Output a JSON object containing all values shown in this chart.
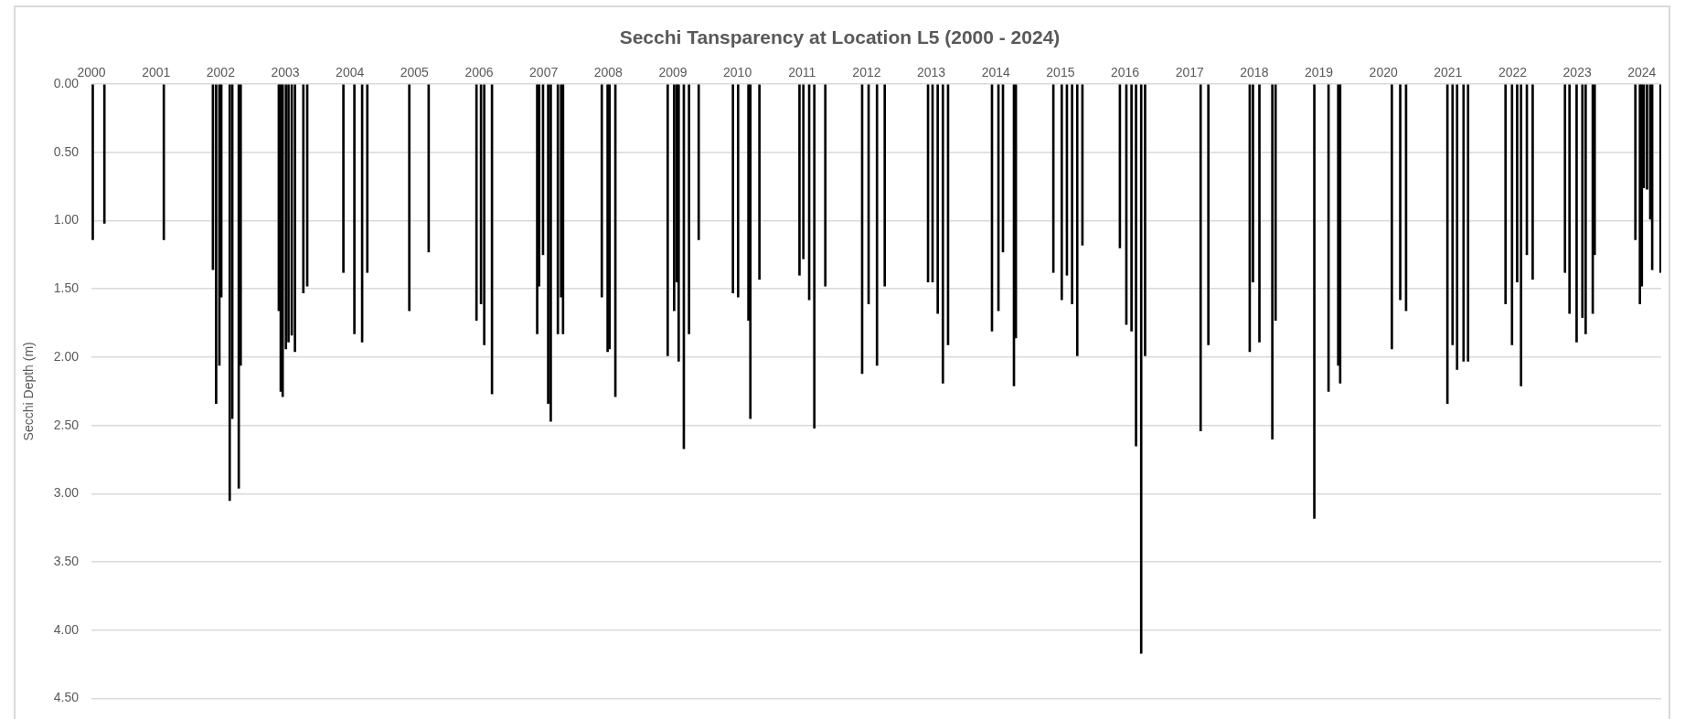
{
  "chart_data": {
    "type": "bar",
    "title": "Secchi Tansparency at Location L5 (2000 - 2024)",
    "ylabel": "Secchi Depth (m)",
    "color": "#000000",
    "legend": false,
    "grid": "y",
    "x": [
      2000.02,
      2000.2,
      2001.12,
      2001.88,
      2001.93,
      2001.98,
      2002.01,
      2002.14,
      2002.18,
      2002.28,
      2002.31,
      2002.9,
      2002.93,
      2002.96,
      2003.01,
      2003.05,
      2003.1,
      2003.15,
      2003.28,
      2003.34,
      2003.9,
      2004.07,
      2004.19,
      2004.27,
      2004.92,
      2005.22,
      2005.96,
      2006.03,
      2006.08,
      2006.2,
      2006.9,
      2006.93,
      2006.99,
      2007.07,
      2007.11,
      2007.22,
      2007.27,
      2007.3,
      2007.9,
      2007.99,
      2008.02,
      2008.11,
      2008.92,
      2009.02,
      2009.06,
      2009.09,
      2009.17,
      2009.25,
      2009.4,
      2009.93,
      2010.01,
      2010.17,
      2010.2,
      2010.34,
      2010.96,
      2011.02,
      2011.11,
      2011.19,
      2011.36,
      2011.93,
      2012.03,
      2012.16,
      2012.28,
      2012.95,
      2013.02,
      2013.1,
      2013.18,
      2013.26,
      2013.94,
      2014.04,
      2014.11,
      2014.28,
      2014.31,
      2014.89,
      2015.02,
      2015.1,
      2015.18,
      2015.26,
      2015.34,
      2015.92,
      2016.02,
      2016.1,
      2016.17,
      2016.25,
      2016.31,
      2017.17,
      2017.29,
      2017.93,
      2017.98,
      2018.08,
      2018.28,
      2018.33,
      2018.93,
      2019.15,
      2019.3,
      2019.33,
      2020.13,
      2020.26,
      2020.35,
      2020.99,
      2021.07,
      2021.14,
      2021.24,
      2021.31,
      2021.89,
      2021.99,
      2022.07,
      2022.13,
      2022.22,
      2022.31,
      2022.81,
      2022.88,
      2022.99,
      2023.08,
      2023.13,
      2023.24,
      2023.27,
      2023.9,
      2023.97,
      2024.0,
      2024.03,
      2024.08,
      2024.13,
      2024.16,
      2024.29
    ],
    "values": [
      1.14,
      1.02,
      1.14,
      1.36,
      2.34,
      2.06,
      1.56,
      3.05,
      2.45,
      2.96,
      2.06,
      1.66,
      2.25,
      2.29,
      1.94,
      1.89,
      1.84,
      1.96,
      1.53,
      1.48,
      1.38,
      1.83,
      1.89,
      1.38,
      1.66,
      1.23,
      1.73,
      1.61,
      1.91,
      2.27,
      1.83,
      1.48,
      1.25,
      2.34,
      2.47,
      1.83,
      1.56,
      1.83,
      1.56,
      1.96,
      1.94,
      2.29,
      1.99,
      1.66,
      1.45,
      2.03,
      2.67,
      1.83,
      1.14,
      1.53,
      1.56,
      1.73,
      2.45,
      1.43,
      1.4,
      1.28,
      1.58,
      2.52,
      1.48,
      2.12,
      1.61,
      2.06,
      1.48,
      1.45,
      1.45,
      1.68,
      2.19,
      1.91,
      1.81,
      1.66,
      1.23,
      2.21,
      1.86,
      1.38,
      1.58,
      1.4,
      1.61,
      1.99,
      1.18,
      1.2,
      1.76,
      1.81,
      2.65,
      4.17,
      1.99,
      2.54,
      1.91,
      1.96,
      1.45,
      1.89,
      2.6,
      1.73,
      3.18,
      2.25,
      2.06,
      2.19,
      1.94,
      1.58,
      1.66,
      2.34,
      1.91,
      2.09,
      2.03,
      2.03,
      1.61,
      1.91,
      1.45,
      2.21,
      1.25,
      1.43,
      1.38,
      1.68,
      1.89,
      1.71,
      1.83,
      1.68,
      1.25,
      1.14,
      1.61,
      1.48,
      0.76,
      0.77,
      0.99,
      1.36,
      1.38
    ],
    "xlim": [
      2000,
      2024.3
    ],
    "xticks": [
      2000,
      2001,
      2002,
      2003,
      2004,
      2005,
      2006,
      2007,
      2008,
      2009,
      2010,
      2011,
      2012,
      2013,
      2014,
      2015,
      2016,
      2017,
      2018,
      2019,
      2020,
      2021,
      2022,
      2023,
      2024
    ],
    "ylim": [
      4.5,
      0
    ],
    "yticks": [
      {
        "value": 0,
        "label": "0.00"
      },
      {
        "value": 0.5,
        "label": "0.50"
      },
      {
        "value": 1,
        "label": "1.00"
      },
      {
        "value": 1.5,
        "label": "1.50"
      },
      {
        "value": 2,
        "label": "2.00"
      },
      {
        "value": 2.5,
        "label": "2.50"
      },
      {
        "value": 3,
        "label": "3.00"
      },
      {
        "value": 3.5,
        "label": "3.50"
      },
      {
        "value": 4,
        "label": "4.00"
      },
      {
        "value": 4.5,
        "label": "4.50"
      }
    ]
  }
}
